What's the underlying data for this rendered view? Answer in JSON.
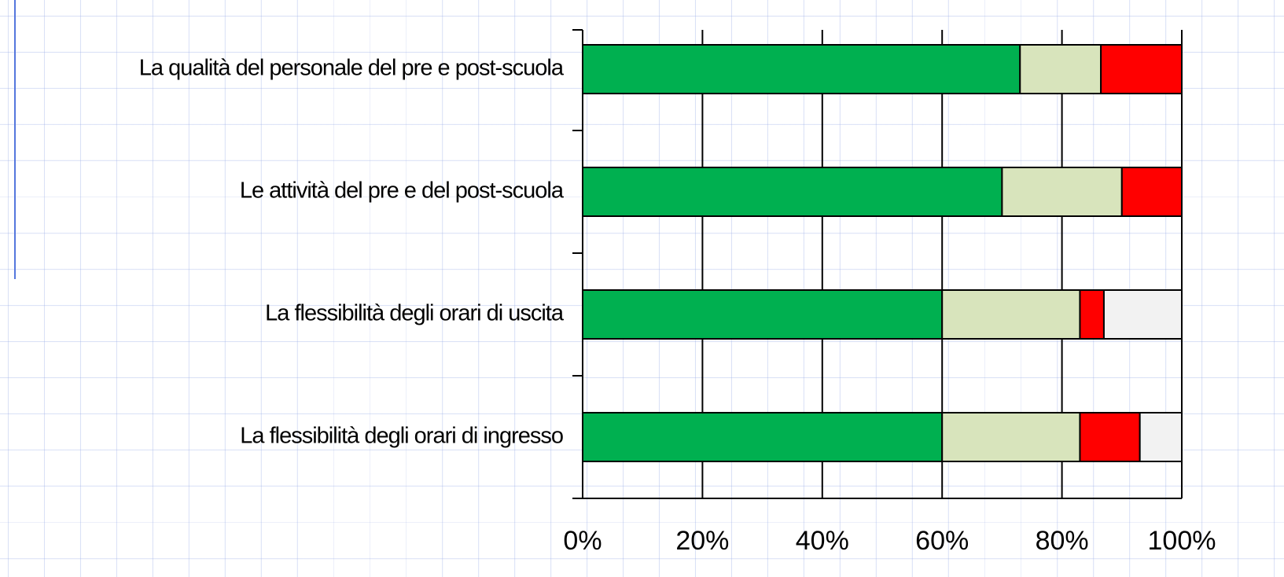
{
  "chart_data": {
    "type": "stacked-barh",
    "categories": [
      "La qualità del personale del pre e post-scuola",
      "Le attività del pre e del post-scuola",
      "La flessibilità degli orari di uscita",
      "La flessibilità degli orari di ingresso"
    ],
    "series": [
      {
        "color": "#00b050",
        "values": [
          73,
          70,
          60,
          60
        ]
      },
      {
        "color": "#d8e4bc",
        "values": [
          13.5,
          20,
          23,
          23
        ]
      },
      {
        "color": "#ff0000",
        "values": [
          13.5,
          10,
          4,
          10
        ]
      },
      {
        "color": "#f2f2f2",
        "values": [
          0,
          0,
          13,
          7
        ]
      }
    ],
    "xlim": [
      0,
      100
    ],
    "xticks": [
      {
        "value": 0,
        "label": "0%"
      },
      {
        "value": 20,
        "label": "20%"
      },
      {
        "value": 40,
        "label": "40%"
      },
      {
        "value": 60,
        "label": "60%"
      },
      {
        "value": 80,
        "label": "80%"
      },
      {
        "value": 100,
        "label": "100%"
      }
    ],
    "grid": true
  }
}
